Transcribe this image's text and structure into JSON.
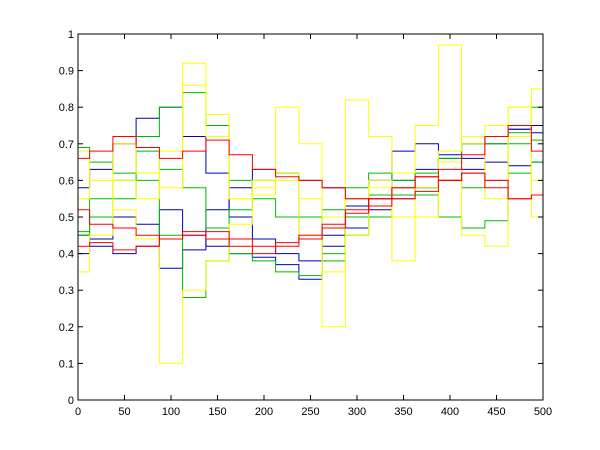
{
  "chart_data": {
    "type": "line",
    "title": "",
    "xlabel": "",
    "ylabel": "",
    "xlim": [
      0,
      500
    ],
    "ylim": [
      0,
      1
    ],
    "grid": false,
    "legend": "none",
    "x_ticks": [
      0,
      50,
      100,
      150,
      200,
      250,
      300,
      350,
      400,
      450,
      500
    ],
    "x_tick_labels": [
      "0",
      "50",
      "100",
      "150",
      "200",
      "250",
      "300",
      "350",
      "400",
      "450",
      "500"
    ],
    "y_ticks": [
      0,
      0.1,
      0.2,
      0.3,
      0.4,
      0.5,
      0.6,
      0.7,
      0.8,
      0.9,
      1
    ],
    "y_tick_labels": [
      "0",
      "0.1",
      "0.2",
      "0.3",
      "0.4",
      "0.5",
      "0.6",
      "0.7",
      "0.8",
      "0.9",
      "1"
    ],
    "x": [
      0,
      25,
      50,
      75,
      100,
      125,
      150,
      175,
      200,
      225,
      250,
      275,
      300,
      325,
      350,
      375,
      400,
      425,
      450,
      475,
      500
    ],
    "series": [
      {
        "color": "#0000bb",
        "values": [
          0.58,
          0.63,
          0.7,
          0.77,
          0.8,
          0.72,
          0.62,
          0.5,
          0.44,
          0.4,
          0.38,
          0.45,
          0.53,
          0.6,
          0.68,
          0.7,
          0.67,
          0.66,
          0.7,
          0.74,
          0.75
        ]
      },
      {
        "color": "#0000bb",
        "values": [
          0.4,
          0.44,
          0.5,
          0.48,
          0.36,
          0.41,
          0.52,
          0.58,
          0.63,
          0.62,
          0.6,
          0.58,
          0.55,
          0.52,
          0.55,
          0.58,
          0.6,
          0.63,
          0.65,
          0.64,
          0.65
        ]
      },
      {
        "color": "#0000bb",
        "values": [
          0.45,
          0.42,
          0.4,
          0.42,
          0.52,
          0.45,
          0.42,
          0.4,
          0.39,
          0.37,
          0.33,
          0.42,
          0.47,
          0.55,
          0.6,
          0.63,
          0.66,
          0.7,
          0.72,
          0.74,
          0.73
        ]
      },
      {
        "color": "#00bb00",
        "values": [
          0.69,
          0.65,
          0.62,
          0.72,
          0.8,
          0.84,
          0.75,
          0.6,
          0.55,
          0.5,
          0.44,
          0.52,
          0.58,
          0.62,
          0.6,
          0.56,
          0.5,
          0.47,
          0.49,
          0.7,
          0.8
        ]
      },
      {
        "color": "#00bb00",
        "values": [
          0.45,
          0.5,
          0.55,
          0.6,
          0.45,
          0.28,
          0.38,
          0.52,
          0.6,
          0.62,
          0.5,
          0.4,
          0.5,
          0.56,
          0.56,
          0.58,
          0.6,
          0.58,
          0.6,
          0.62,
          0.65
        ]
      },
      {
        "color": "#00bb00",
        "values": [
          0.46,
          0.55,
          0.6,
          0.68,
          0.63,
          0.58,
          0.47,
          0.4,
          0.38,
          0.35,
          0.34,
          0.38,
          0.45,
          0.5,
          0.56,
          0.62,
          0.66,
          0.7,
          0.7,
          0.73,
          0.71
        ]
      },
      {
        "color": "#ffff00",
        "values": [
          0.68,
          0.6,
          0.52,
          0.44,
          0.1,
          0.3,
          0.38,
          0.48,
          0.56,
          0.6,
          0.55,
          0.2,
          0.45,
          0.58,
          0.38,
          0.5,
          0.65,
          0.45,
          0.42,
          0.8,
          0.5
        ]
      },
      {
        "color": "#ffff00",
        "values": [
          0.35,
          0.45,
          0.6,
          0.55,
          0.68,
          0.92,
          0.78,
          0.55,
          0.6,
          0.8,
          0.7,
          0.5,
          0.82,
          0.72,
          0.62,
          0.75,
          0.97,
          0.7,
          0.55,
          0.72,
          0.85
        ]
      },
      {
        "color": "#ffff00",
        "values": [
          0.55,
          0.6,
          0.7,
          0.62,
          0.58,
          0.86,
          0.72,
          0.55,
          0.58,
          0.62,
          0.45,
          0.35,
          0.55,
          0.6,
          0.5,
          0.58,
          0.68,
          0.72,
          0.75,
          0.8,
          0.6
        ]
      },
      {
        "color": "#ff0000",
        "values": [
          0.66,
          0.68,
          0.72,
          0.69,
          0.66,
          0.68,
          0.71,
          0.67,
          0.63,
          0.61,
          0.6,
          0.58,
          0.55,
          0.53,
          0.55,
          0.57,
          0.6,
          0.62,
          0.58,
          0.55,
          0.56
        ]
      },
      {
        "color": "#ff0000",
        "values": [
          0.52,
          0.48,
          0.47,
          0.45,
          0.44,
          0.46,
          0.46,
          0.44,
          0.42,
          0.43,
          0.45,
          0.48,
          0.52,
          0.55,
          0.58,
          0.61,
          0.63,
          0.67,
          0.72,
          0.75,
          0.68
        ]
      },
      {
        "color": "#ff0000",
        "values": [
          0.42,
          0.43,
          0.41,
          0.42,
          0.44,
          0.45,
          0.44,
          0.42,
          0.4,
          0.42,
          0.44,
          0.47,
          0.51,
          0.55,
          0.58,
          0.61,
          0.6,
          0.62,
          0.6,
          0.55,
          0.56
        ]
      }
    ]
  }
}
